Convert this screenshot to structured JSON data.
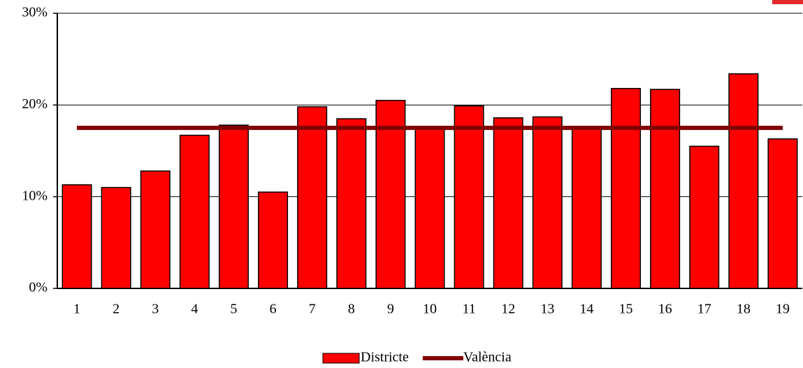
{
  "chart_data": {
    "type": "bar",
    "categories": [
      "1",
      "2",
      "3",
      "4",
      "5",
      "6",
      "7",
      "8",
      "9",
      "10",
      "11",
      "12",
      "13",
      "14",
      "15",
      "16",
      "17",
      "18",
      "19"
    ],
    "series": [
      {
        "name": "Districte",
        "type": "bar",
        "color": "#ff0000",
        "values": [
          11.3,
          11.0,
          12.8,
          16.7,
          17.8,
          10.5,
          19.8,
          18.5,
          20.5,
          17.5,
          19.9,
          18.6,
          18.7,
          17.5,
          21.8,
          21.7,
          15.5,
          23.4,
          16.3
        ]
      },
      {
        "name": "València",
        "type": "line",
        "color": "#800000",
        "values": [
          17.5,
          17.5,
          17.5,
          17.5,
          17.5,
          17.5,
          17.5,
          17.5,
          17.5,
          17.5,
          17.5,
          17.5,
          17.5,
          17.5,
          17.5,
          17.5,
          17.5,
          17.5,
          17.5
        ]
      }
    ],
    "ylim": [
      0,
      30
    ],
    "yticks": [
      {
        "value": 0,
        "label": "0%"
      },
      {
        "value": 10,
        "label": "10%"
      },
      {
        "value": 20,
        "label": "20%"
      },
      {
        "value": 30,
        "label": "30%"
      }
    ],
    "grid": true,
    "legend": "bottom"
  }
}
